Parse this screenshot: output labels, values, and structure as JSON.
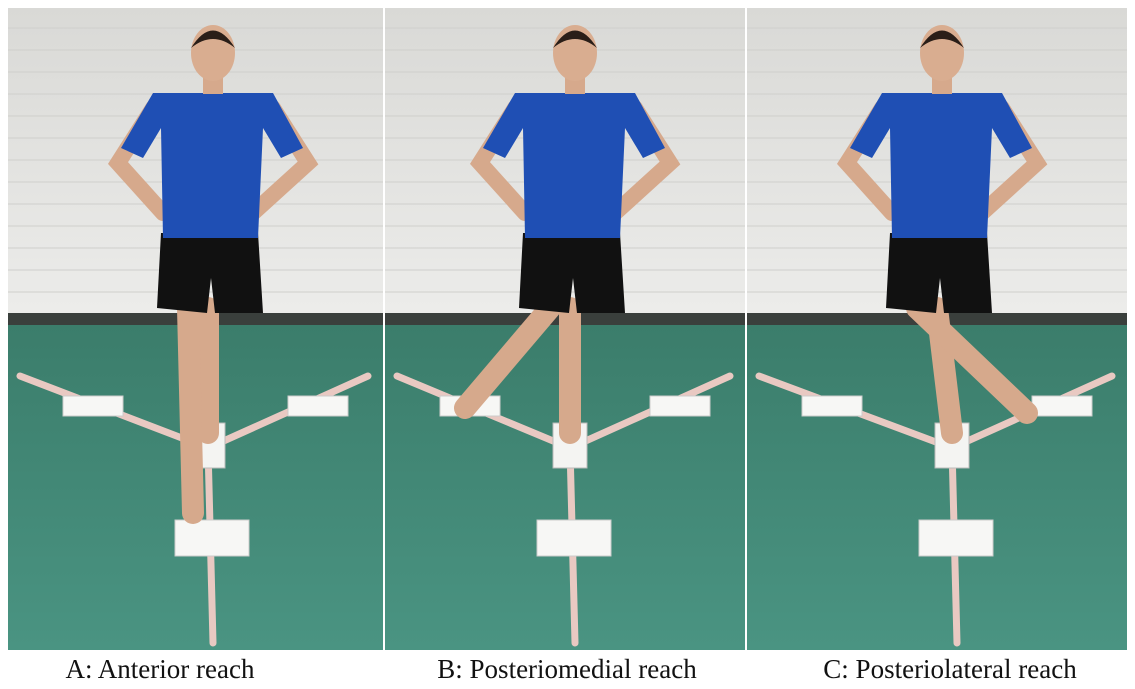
{
  "panels": [
    {
      "caption": "A: Anterior reach"
    },
    {
      "caption": "B: Posteriomedial reach"
    },
    {
      "caption": "C: Posteriolateral reach"
    }
  ]
}
